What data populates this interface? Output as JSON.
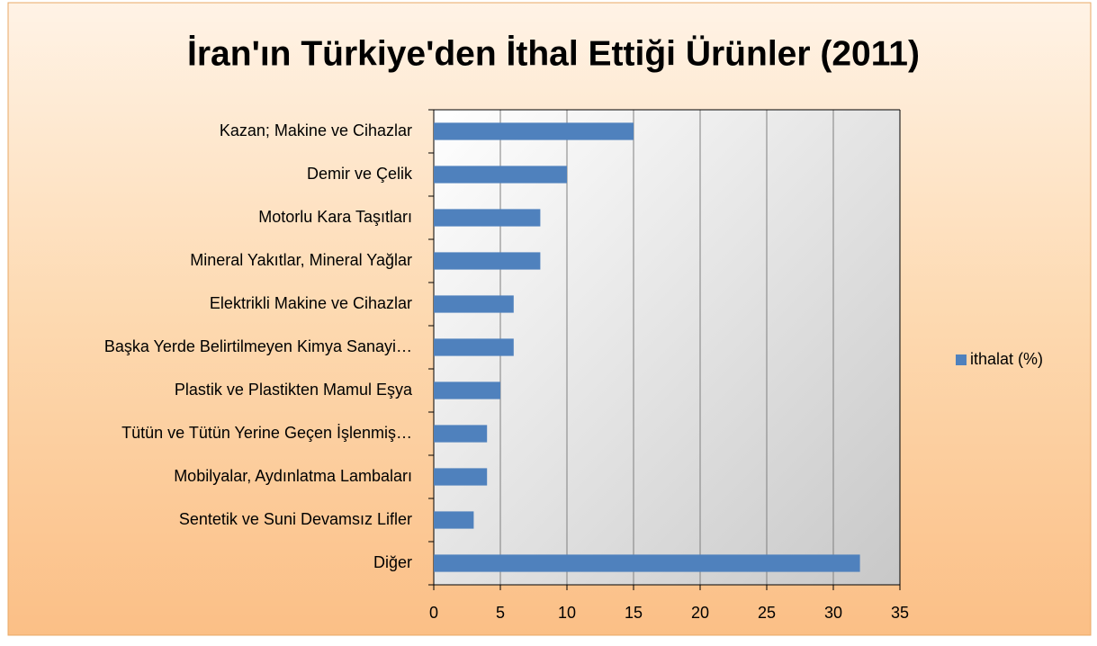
{
  "chart_data": {
    "type": "barh",
    "title": "İran'ın Türkiye'den İthal Ettiği Ürünler (2011)",
    "categories": [
      "Kazan; Makine ve Cihazlar",
      "Demir ve Çelik",
      "Motorlu Kara Taşıtları",
      "Mineral Yakıtlar, Mineral Yağlar",
      "Elektrikli Makine ve Cihazlar",
      "Başka Yerde Belirtilmeyen Kimya Sanayi…",
      "Plastik ve Plastikten Mamul Eşya",
      "Tütün ve Tütün Yerine Geçen İşlenmiş…",
      "Mobilyalar, Aydınlatma Lambaları",
      "Sentetik ve Suni Devamsız Lifler",
      "Diğer"
    ],
    "series": [
      {
        "name": "ithalat (%)",
        "color": "#4f81bd",
        "values": [
          15,
          10,
          8,
          8,
          6,
          6,
          5,
          4,
          4,
          3,
          32
        ]
      }
    ],
    "xlim": [
      0,
      35
    ],
    "xticks": [
      0,
      5,
      10,
      15,
      20,
      25,
      30,
      35
    ],
    "grid": true,
    "legend": "right"
  }
}
